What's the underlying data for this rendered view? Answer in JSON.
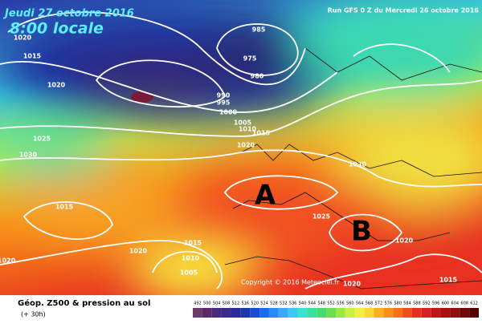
{
  "header": {
    "date": "Jeudi 27 octobre 2016",
    "time": "8:00 locale",
    "run": "Run GFS 0 Z du Mercredi 26 octobre 2016"
  },
  "isobar_labels": [
    "1020",
    "1015",
    "985",
    "975",
    "980",
    "1020",
    "990",
    "995",
    "1000",
    "1005",
    "1010",
    "1015",
    "1020",
    "1025",
    "1030",
    "1030",
    "1015",
    "1025",
    "1020",
    "1015",
    "1020",
    "1010",
    "1005",
    "1020",
    "1020",
    "1015"
  ],
  "pressure_centers": [
    "A",
    "B"
  ],
  "copyright": "Copyright © 2016 Meteociel.fr",
  "legend": {
    "title": "Géop. Z500 & pression au sol",
    "subtitle": "(+ 30h)",
    "scale": [
      "492",
      "500",
      "504",
      "508",
      "512",
      "516",
      "520",
      "524",
      "528",
      "532",
      "536",
      "540",
      "544",
      "548",
      "552",
      "556",
      "560",
      "564",
      "568",
      "572",
      "576",
      "580",
      "584",
      "588",
      "592",
      "596",
      "600",
      "604",
      "608",
      "612"
    ],
    "colors": [
      "#6a3a6a",
      "#5a2a6a",
      "#4a2a7a",
      "#3a2a8a",
      "#2a2a9a",
      "#1a3aaa",
      "#1a4ad0",
      "#1a6af0",
      "#2a8af8",
      "#3aa8f8",
      "#3ac8f0",
      "#3ae0d0",
      "#3ae0a0",
      "#4ad870",
      "#6ae050",
      "#9ae840",
      "#c8f040",
      "#f0f040",
      "#f8d830",
      "#f8b020",
      "#f89018",
      "#f87018",
      "#f05018",
      "#e83020",
      "#d82020",
      "#c01818",
      "#a81010",
      "#901010",
      "#700808",
      "#500000"
    ]
  }
}
